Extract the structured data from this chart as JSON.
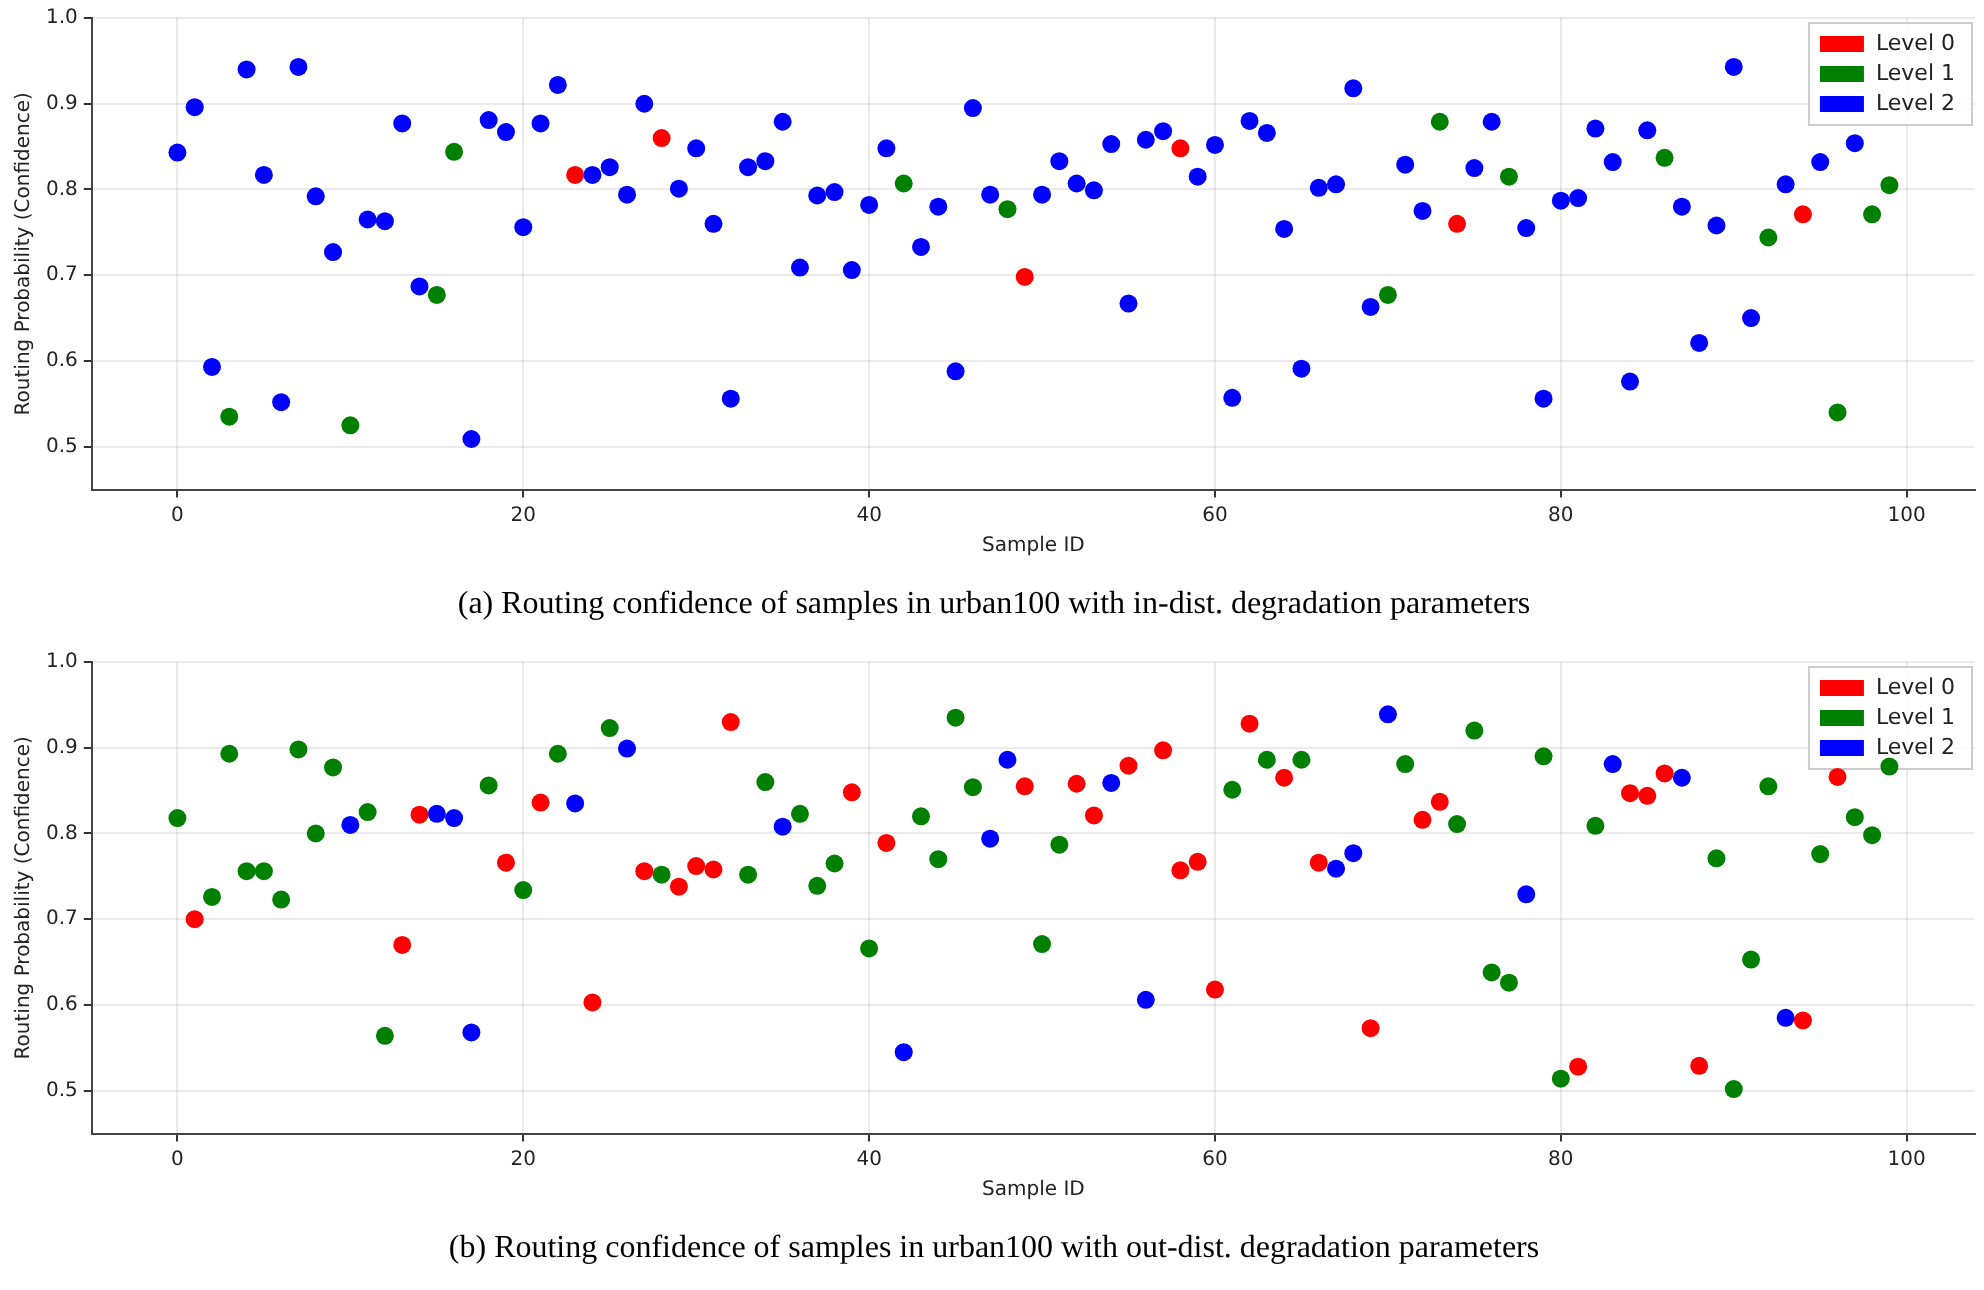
{
  "chart_data": [
    {
      "type": "scatter",
      "title": "(a) Routing confidence of samples in urban100 with in-dist. degradation parameters",
      "xlabel": "Sample ID",
      "ylabel": "Routing Probability (Confidence)",
      "xlim": [
        -4.95,
        103.95
      ],
      "ylim": [
        0.45,
        1.0
      ],
      "xticks": [
        0,
        20,
        40,
        60,
        80,
        100
      ],
      "yticks": [
        0.5,
        0.6,
        0.7,
        0.8,
        0.9,
        {
          "value": 1.0,
          "label": "1.0"
        }
      ],
      "grid": true,
      "legend": "top right",
      "marker": "circle",
      "series": [
        {
          "name": "Level 0",
          "color": "#ff0000",
          "x": [
            23,
            28,
            49,
            58,
            74,
            94
          ],
          "values": [
            0.817,
            0.86,
            0.698,
            0.848,
            0.76,
            0.771
          ]
        },
        {
          "name": "Level 1",
          "color": "#008000",
          "x": [
            3,
            10,
            15,
            16,
            42,
            48,
            70,
            73,
            77,
            86,
            92,
            96,
            98,
            99
          ],
          "values": [
            0.535,
            0.525,
            0.677,
            0.844,
            0.807,
            0.777,
            0.677,
            0.879,
            0.815,
            0.837,
            0.744,
            0.54,
            0.771,
            0.805
          ]
        },
        {
          "name": "Level 2",
          "color": "#0000ff",
          "x": [
            0,
            1,
            2,
            4,
            5,
            6,
            7,
            8,
            9,
            11,
            12,
            13,
            14,
            17,
            18,
            19,
            20,
            21,
            22,
            24,
            25,
            26,
            27,
            29,
            30,
            31,
            32,
            33,
            34,
            35,
            36,
            37,
            38,
            39,
            40,
            41,
            43,
            44,
            45,
            46,
            47,
            50,
            51,
            52,
            53,
            54,
            55,
            56,
            57,
            59,
            60,
            61,
            62,
            63,
            64,
            65,
            66,
            67,
            68,
            69,
            71,
            72,
            75,
            76,
            78,
            79,
            80,
            81,
            82,
            83,
            84,
            85,
            87,
            88,
            89,
            90,
            91,
            93,
            95,
            97
          ],
          "values": [
            0.843,
            0.896,
            0.593,
            0.94,
            0.817,
            0.552,
            0.943,
            0.792,
            0.727,
            0.765,
            0.763,
            0.877,
            0.687,
            0.509,
            0.881,
            0.867,
            0.756,
            0.877,
            0.922,
            0.817,
            0.826,
            0.794,
            0.9,
            0.801,
            0.848,
            0.76,
            0.556,
            0.826,
            0.833,
            0.879,
            0.709,
            0.793,
            0.797,
            0.706,
            0.782,
            0.848,
            0.733,
            0.78,
            0.588,
            0.895,
            0.794,
            0.794,
            0.833,
            0.807,
            0.799,
            0.853,
            0.667,
            0.858,
            0.868,
            0.815,
            0.852,
            0.557,
            0.88,
            0.866,
            0.754,
            0.591,
            0.802,
            0.806,
            0.918,
            0.663,
            0.829,
            0.775,
            0.825,
            0.879,
            0.755,
            0.556,
            0.787,
            0.79,
            0.871,
            0.832,
            0.576,
            0.869,
            0.78,
            0.621,
            0.758,
            0.943,
            0.65,
            0.806,
            0.832,
            0.854
          ]
        }
      ]
    },
    {
      "type": "scatter",
      "title": "(b) Routing confidence of samples in urban100 with out-dist. degradation parameters",
      "xlabel": "Sample ID",
      "ylabel": "Routing Probability (Confidence)",
      "xlim": [
        -4.95,
        103.95
      ],
      "ylim": [
        0.45,
        1.0
      ],
      "xticks": [
        0,
        20,
        40,
        60,
        80,
        100
      ],
      "yticks": [
        0.5,
        0.6,
        0.7,
        0.8,
        0.9,
        {
          "value": 1.0,
          "label": "1.0"
        }
      ],
      "grid": true,
      "legend": "top right",
      "marker": "circle",
      "series": [
        {
          "name": "Level 0",
          "color": "#ff0000",
          "x": [
            1,
            13,
            14,
            19,
            21,
            24,
            27,
            29,
            30,
            31,
            32,
            39,
            41,
            49,
            52,
            53,
            55,
            57,
            58,
            59,
            60,
            62,
            64,
            66,
            69,
            72,
            73,
            81,
            84,
            85,
            86,
            88,
            94,
            96
          ],
          "values": [
            0.7,
            0.67,
            0.822,
            0.766,
            0.836,
            0.603,
            0.756,
            0.738,
            0.762,
            0.758,
            0.93,
            0.848,
            0.789,
            0.855,
            0.858,
            0.821,
            0.879,
            0.897,
            0.757,
            0.767,
            0.618,
            0.928,
            0.865,
            0.766,
            0.573,
            0.816,
            0.837,
            0.528,
            0.847,
            0.844,
            0.87,
            0.529,
            0.582,
            0.866
          ]
        },
        {
          "name": "Level 1",
          "color": "#008000",
          "x": [
            0,
            2,
            3,
            4,
            5,
            6,
            7,
            8,
            9,
            11,
            12,
            18,
            20,
            22,
            25,
            28,
            33,
            34,
            36,
            37,
            38,
            40,
            43,
            44,
            45,
            46,
            50,
            51,
            61,
            63,
            65,
            71,
            74,
            75,
            76,
            77,
            79,
            80,
            82,
            89,
            90,
            91,
            92,
            95,
            97,
            98,
            99
          ],
          "values": [
            0.818,
            0.726,
            0.893,
            0.756,
            0.756,
            0.723,
            0.898,
            0.8,
            0.877,
            0.825,
            0.564,
            0.856,
            0.734,
            0.893,
            0.923,
            0.752,
            0.752,
            0.86,
            0.823,
            0.739,
            0.765,
            0.666,
            0.82,
            0.77,
            0.935,
            0.854,
            0.671,
            0.787,
            0.851,
            0.886,
            0.886,
            0.881,
            0.811,
            0.92,
            0.638,
            0.626,
            0.89,
            0.514,
            0.809,
            0.771,
            0.502,
            0.653,
            0.855,
            0.776,
            0.819,
            0.798,
            0.878
          ]
        },
        {
          "name": "Level 2",
          "color": "#0000ff",
          "x": [
            10,
            15,
            16,
            17,
            23,
            26,
            35,
            42,
            47,
            48,
            54,
            56,
            67,
            68,
            70,
            78,
            83,
            87,
            93
          ],
          "values": [
            0.81,
            0.823,
            0.818,
            0.568,
            0.835,
            0.899,
            0.808,
            0.545,
            0.794,
            0.886,
            0.859,
            0.606,
            0.759,
            0.777,
            0.939,
            0.729,
            0.881,
            0.865,
            0.585
          ]
        }
      ]
    }
  ]
}
